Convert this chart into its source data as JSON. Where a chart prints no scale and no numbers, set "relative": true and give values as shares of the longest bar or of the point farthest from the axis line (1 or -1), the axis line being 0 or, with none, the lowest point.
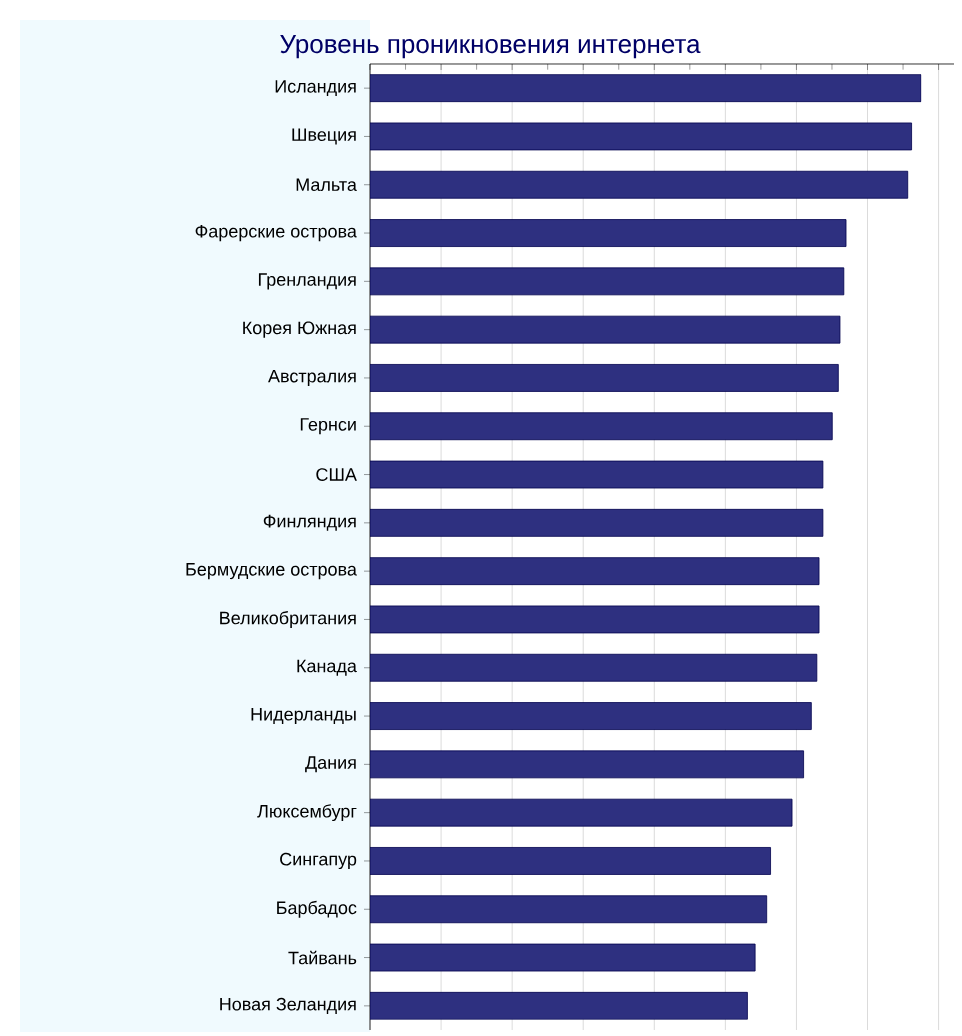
{
  "chart_data": {
    "type": "bar",
    "orientation": "horizontal",
    "relative": true,
    "grid": "x",
    "color": "#2e3080",
    "title": "Уровень проникновения интернета",
    "categories": [
      "Исландия",
      "Швеция",
      "Мальта",
      "Фарерские острова",
      "Гренландия",
      "Корея Южная",
      "Австралия",
      "Гернси",
      "США",
      "Финляндия",
      "Бермудские острова",
      "Великобритания",
      "Канада",
      "Нидерланды",
      "Дания",
      "Люксембург",
      "Сингапур",
      "Барбадос",
      "Тайвань",
      "Новая Зеландия"
    ],
    "values": [
      1,
      0.983,
      0.976,
      0.864,
      0.86,
      0.853,
      0.85,
      0.839,
      0.822,
      0.822,
      0.815,
      0.815,
      0.811,
      0.801,
      0.787,
      0.766,
      0.727,
      0.72,
      0.699,
      0.685
    ]
  }
}
